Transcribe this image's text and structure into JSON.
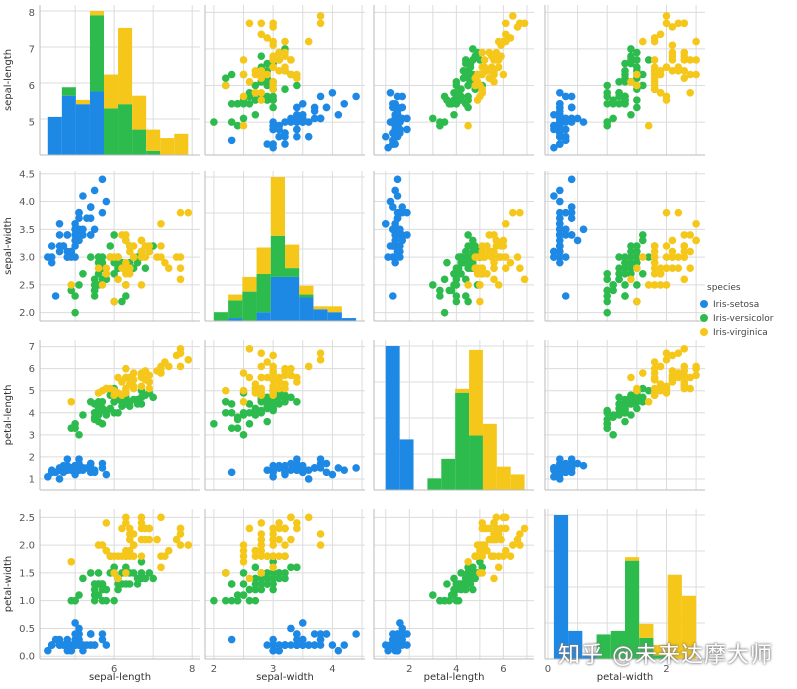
{
  "chart_data": {
    "type": "pairplot",
    "variables": [
      "sepal-length",
      "sepal-width",
      "petal-length",
      "petal-width"
    ],
    "ranges": {
      "sepal-length": [
        4.1,
        8.2
      ],
      "sepal-width": [
        1.85,
        4.55
      ],
      "petal-length": [
        0.5,
        7.3
      ],
      "petal-width": [
        -0.05,
        2.65
      ]
    },
    "ticks": {
      "sepal-length": [
        5,
        6,
        7,
        8
      ],
      "sepal-width": [
        2.0,
        2.5,
        3.0,
        3.5,
        4.0,
        4.5
      ],
      "petal-length": [
        1,
        2,
        3,
        4,
        5,
        6,
        7
      ],
      "petal-width": [
        0.0,
        0.5,
        1.0,
        1.5,
        2.0,
        2.5
      ]
    },
    "tick_labels": {
      "x": {
        "sepal-length": [
          "6",
          "8"
        ],
        "sepal-width": [
          "2",
          "3",
          "4"
        ],
        "petal-length": [
          "2",
          "4",
          "6"
        ],
        "petal-width": [
          "0",
          "2"
        ]
      },
      "y": {
        "sepal-length": [
          "5",
          "6",
          "7",
          "8"
        ],
        "sepal-width": [
          "2.0",
          "2.5",
          "3.0",
          "3.5",
          "4.0",
          "4.5"
        ],
        "petal-length": [
          "1",
          "2",
          "3",
          "4",
          "5",
          "6",
          "7"
        ],
        "petal-width": [
          "0.0",
          "0.5",
          "1.0",
          "1.5",
          "2.0",
          "2.5"
        ]
      },
      "x_values": {
        "sepal-length": [
          6,
          8
        ],
        "sepal-width": [
          2,
          3,
          4
        ],
        "petal-length": [
          2,
          4,
          6
        ],
        "petal-width": [
          0,
          2
        ]
      }
    },
    "legend": {
      "title": "species",
      "entries": [
        "Iris-setosa",
        "Iris-versicolor",
        "Iris-virginica"
      ],
      "placement": "right"
    },
    "colors": {
      "Iris-setosa": "#1e88e5",
      "Iris-versicolor": "#2dbb4e",
      "Iris-virginica": "#f5c71a"
    },
    "grid": true,
    "diagonal": "stacked-histogram",
    "histograms": {
      "sepal-length": {
        "edges": [
          4.3,
          4.66,
          5.02,
          5.38,
          5.74,
          6.1,
          6.46,
          6.82,
          7.18,
          7.54,
          7.9
        ],
        "Iris-setosa": [
          9,
          14,
          12,
          15,
          0,
          0,
          0,
          0,
          0,
          0
        ],
        "Iris-versicolor": [
          0,
          2,
          0,
          18,
          11,
          12,
          6,
          1,
          0,
          0
        ],
        "Iris-virginica": [
          0,
          0,
          1,
          1,
          8,
          18,
          8,
          5,
          4,
          5
        ]
      },
      "sepal-width": {
        "edges": [
          2.0,
          2.24,
          2.48,
          2.72,
          2.96,
          3.2,
          3.44,
          3.68,
          3.92,
          4.16,
          4.4
        ],
        "Iris-setosa": [
          0,
          1,
          0,
          3,
          15,
          15,
          8,
          4,
          3,
          1
        ],
        "Iris-versicolor": [
          3,
          6,
          10,
          13,
          14,
          3,
          1,
          0,
          0,
          0
        ],
        "Iris-virginica": [
          0,
          2,
          5,
          9,
          20,
          8,
          3,
          1,
          2,
          0
        ]
      },
      "petal-length": {
        "edges": [
          1.0,
          1.59,
          2.18,
          2.77,
          3.36,
          3.95,
          4.54,
          5.13,
          5.72,
          6.31,
          6.9
        ],
        "Iris-setosa": [
          37,
          13,
          0,
          0,
          0,
          0,
          0,
          0,
          0,
          0
        ],
        "Iris-versicolor": [
          0,
          0,
          0,
          3,
          8,
          25,
          14,
          0,
          0,
          0
        ],
        "Iris-virginica": [
          0,
          0,
          0,
          0,
          0,
          1,
          22,
          17,
          6,
          4
        ]
      },
      "petal-width": {
        "edges": [
          0.1,
          0.34,
          0.58,
          0.82,
          1.06,
          1.3,
          1.54,
          1.78,
          2.02,
          2.26,
          2.5
        ],
        "Iris-setosa": [
          41,
          8,
          1,
          0,
          0,
          0,
          0,
          0,
          0,
          0
        ],
        "Iris-versicolor": [
          0,
          0,
          0,
          7,
          8,
          28,
          6,
          1,
          0,
          0
        ],
        "Iris-virginica": [
          0,
          0,
          0,
          0,
          0,
          1,
          4,
          3,
          24,
          18
        ]
      }
    },
    "species_data": {
      "Iris-setosa": {
        "sepal-length": [
          5.1,
          4.9,
          4.7,
          4.6,
          5.0,
          5.4,
          4.6,
          5.0,
          4.4,
          4.9,
          5.4,
          4.8,
          4.8,
          4.3,
          5.8,
          5.7,
          5.4,
          5.1,
          5.7,
          5.1,
          5.4,
          5.1,
          4.6,
          5.1,
          4.8,
          5.0,
          5.0,
          5.2,
          5.2,
          4.7,
          4.8,
          5.4,
          5.2,
          5.5,
          4.9,
          5.0,
          5.5,
          4.9,
          4.4,
          5.1,
          5.0,
          4.5,
          4.4,
          5.0,
          5.1,
          4.8,
          5.1,
          4.6,
          5.3,
          5.0
        ],
        "sepal-width": [
          3.5,
          3.0,
          3.2,
          3.1,
          3.6,
          3.9,
          3.4,
          3.4,
          2.9,
          3.1,
          3.7,
          3.4,
          3.0,
          3.0,
          4.0,
          4.4,
          3.9,
          3.5,
          3.8,
          3.8,
          3.4,
          3.7,
          3.6,
          3.3,
          3.4,
          3.0,
          3.4,
          3.5,
          3.4,
          3.2,
          3.1,
          3.4,
          4.1,
          4.2,
          3.1,
          3.2,
          3.5,
          3.1,
          3.0,
          3.4,
          3.5,
          2.3,
          3.2,
          3.5,
          3.8,
          3.0,
          3.8,
          3.2,
          3.7,
          3.3
        ],
        "petal-length": [
          1.4,
          1.4,
          1.3,
          1.5,
          1.4,
          1.7,
          1.4,
          1.5,
          1.4,
          1.5,
          1.5,
          1.6,
          1.4,
          1.1,
          1.2,
          1.5,
          1.3,
          1.4,
          1.7,
          1.5,
          1.7,
          1.5,
          1.0,
          1.7,
          1.9,
          1.6,
          1.6,
          1.5,
          1.4,
          1.6,
          1.6,
          1.5,
          1.5,
          1.4,
          1.5,
          1.2,
          1.3,
          1.5,
          1.3,
          1.5,
          1.3,
          1.3,
          1.3,
          1.6,
          1.9,
          1.4,
          1.6,
          1.4,
          1.5,
          1.4
        ],
        "petal-width": [
          0.2,
          0.2,
          0.2,
          0.2,
          0.2,
          0.4,
          0.3,
          0.2,
          0.2,
          0.1,
          0.2,
          0.2,
          0.1,
          0.1,
          0.2,
          0.4,
          0.4,
          0.3,
          0.3,
          0.3,
          0.2,
          0.4,
          0.2,
          0.5,
          0.2,
          0.2,
          0.4,
          0.2,
          0.2,
          0.2,
          0.2,
          0.4,
          0.1,
          0.2,
          0.1,
          0.2,
          0.2,
          0.1,
          0.2,
          0.2,
          0.3,
          0.3,
          0.2,
          0.6,
          0.4,
          0.3,
          0.2,
          0.2,
          0.2,
          0.2
        ]
      },
      "Iris-versicolor": {
        "sepal-length": [
          7.0,
          6.4,
          6.9,
          5.5,
          6.5,
          5.7,
          6.3,
          4.9,
          6.6,
          5.2,
          5.0,
          5.9,
          6.0,
          6.1,
          5.6,
          6.7,
          5.6,
          5.8,
          6.2,
          5.6,
          5.9,
          6.1,
          6.3,
          6.1,
          6.4,
          6.6,
          6.8,
          6.7,
          6.0,
          5.7,
          5.5,
          5.5,
          5.8,
          6.0,
          5.4,
          6.0,
          6.7,
          6.3,
          5.6,
          5.5,
          5.5,
          6.1,
          5.8,
          5.0,
          5.6,
          5.7,
          5.7,
          6.2,
          5.1,
          5.7
        ],
        "sepal-width": [
          3.2,
          3.2,
          3.1,
          2.3,
          2.8,
          2.8,
          3.3,
          2.4,
          2.9,
          2.7,
          2.0,
          3.0,
          2.2,
          2.9,
          2.9,
          3.1,
          3.0,
          2.7,
          2.2,
          2.5,
          3.2,
          2.8,
          2.5,
          2.8,
          2.9,
          3.0,
          2.8,
          3.0,
          2.9,
          2.6,
          2.4,
          2.4,
          2.7,
          2.7,
          3.0,
          3.4,
          3.1,
          2.3,
          3.0,
          2.5,
          2.6,
          3.0,
          2.6,
          2.3,
          2.7,
          3.0,
          2.9,
          2.9,
          2.5,
          2.8
        ],
        "petal-length": [
          4.7,
          4.5,
          4.9,
          4.0,
          4.6,
          4.5,
          4.7,
          3.3,
          4.6,
          3.9,
          3.5,
          4.2,
          4.0,
          4.7,
          3.6,
          4.4,
          4.5,
          4.1,
          4.5,
          3.9,
          4.8,
          4.0,
          4.9,
          4.7,
          4.3,
          4.4,
          4.8,
          5.0,
          4.5,
          3.5,
          3.8,
          3.7,
          3.9,
          5.1,
          4.5,
          4.5,
          4.7,
          4.4,
          4.1,
          4.0,
          4.4,
          4.6,
          4.0,
          3.3,
          4.2,
          4.2,
          4.2,
          4.3,
          3.0,
          4.1
        ],
        "petal-width": [
          1.4,
          1.5,
          1.5,
          1.3,
          1.5,
          1.3,
          1.6,
          1.0,
          1.3,
          1.4,
          1.0,
          1.5,
          1.0,
          1.4,
          1.3,
          1.4,
          1.5,
          1.0,
          1.5,
          1.1,
          1.8,
          1.3,
          1.5,
          1.2,
          1.3,
          1.4,
          1.4,
          1.7,
          1.5,
          1.0,
          1.1,
          1.0,
          1.2,
          1.6,
          1.5,
          1.6,
          1.5,
          1.3,
          1.3,
          1.3,
          1.2,
          1.4,
          1.2,
          1.0,
          1.3,
          1.2,
          1.3,
          1.3,
          1.1,
          1.3
        ]
      },
      "Iris-virginica": {
        "sepal-length": [
          6.3,
          5.8,
          7.1,
          6.3,
          6.5,
          7.6,
          4.9,
          7.3,
          6.7,
          7.2,
          6.5,
          6.4,
          6.8,
          5.7,
          5.8,
          6.4,
          6.5,
          7.7,
          7.7,
          6.0,
          6.9,
          5.6,
          7.7,
          6.3,
          6.7,
          7.2,
          6.2,
          6.1,
          6.4,
          7.2,
          7.4,
          7.9,
          6.4,
          6.3,
          6.1,
          7.7,
          6.3,
          6.4,
          6.0,
          6.9,
          6.7,
          6.9,
          5.8,
          6.8,
          6.7,
          6.7,
          6.3,
          6.5,
          6.2,
          5.9
        ],
        "sepal-width": [
          3.3,
          2.7,
          3.0,
          2.9,
          3.0,
          3.0,
          2.5,
          2.9,
          2.5,
          3.6,
          3.2,
          2.7,
          3.0,
          2.5,
          2.8,
          3.2,
          3.0,
          3.8,
          2.6,
          2.2,
          3.2,
          2.8,
          2.8,
          2.7,
          3.3,
          3.2,
          2.8,
          3.0,
          2.8,
          3.0,
          2.8,
          3.8,
          2.8,
          2.8,
          2.6,
          3.0,
          3.4,
          3.1,
          3.0,
          3.1,
          3.1,
          3.1,
          2.7,
          3.2,
          3.3,
          3.0,
          2.5,
          3.0,
          3.4,
          3.0
        ],
        "petal-length": [
          6.0,
          5.1,
          5.9,
          5.6,
          5.8,
          6.6,
          4.5,
          6.3,
          5.8,
          6.1,
          5.1,
          5.3,
          5.5,
          5.0,
          5.1,
          5.3,
          5.5,
          6.7,
          6.9,
          5.0,
          5.7,
          4.9,
          6.7,
          4.9,
          5.7,
          6.0,
          4.8,
          4.9,
          5.6,
          5.8,
          6.1,
          6.4,
          5.6,
          5.1,
          5.6,
          6.1,
          5.6,
          5.5,
          4.8,
          5.4,
          5.6,
          5.1,
          5.1,
          5.9,
          5.7,
          5.2,
          5.0,
          5.2,
          5.4,
          5.1
        ],
        "petal-width": [
          2.5,
          1.9,
          2.1,
          1.8,
          2.2,
          2.1,
          1.7,
          1.8,
          1.8,
          2.5,
          2.0,
          1.9,
          2.1,
          2.0,
          2.4,
          2.3,
          1.8,
          2.2,
          2.3,
          1.5,
          2.3,
          2.0,
          2.0,
          1.8,
          2.1,
          1.8,
          1.8,
          1.8,
          2.1,
          1.6,
          1.9,
          2.0,
          2.2,
          1.5,
          1.4,
          2.3,
          2.4,
          1.8,
          1.8,
          2.1,
          2.4,
          2.3,
          1.9,
          2.3,
          2.5,
          2.3,
          1.9,
          2.0,
          2.3,
          1.8
        ]
      }
    }
  },
  "watermark": "知乎 @未来达摩大师"
}
